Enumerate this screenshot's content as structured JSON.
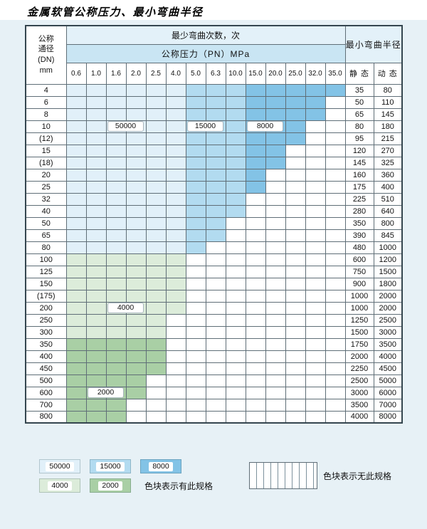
{
  "page_title": "金属软管公称压力、最小弯曲半径",
  "chart_data": {
    "type": "heatmap",
    "title": "金属软管公称压力、最小弯曲半径",
    "header": {
      "dn_lines": [
        "公称",
        "通径",
        "(DN)",
        "mm"
      ],
      "bend_cycles": "最少弯曲次数，次",
      "pressure": "公称压力（PN）MPa",
      "min_bend_radius": "最小弯曲半径",
      "static_label": "静 态",
      "dynamic_label": "动 态"
    },
    "columns_pn_mpa": [
      "0.6",
      "1.0",
      "1.6",
      "2.0",
      "2.5",
      "4.0",
      "5.0",
      "6.3",
      "10.0",
      "15.0",
      "20.0",
      "25.0",
      "32.0",
      "35.0"
    ],
    "blue_bands": [
      {
        "cycles": "50000",
        "col_from": 0,
        "col_to": 5
      },
      {
        "cycles": "15000",
        "col_from": 6,
        "col_to": 8
      },
      {
        "cycles": "8000",
        "col_from": 9,
        "col_to": 13
      }
    ],
    "rows": [
      {
        "dn": "4",
        "zone": "blue",
        "max_col": 13,
        "static": "35",
        "dynamic": "80"
      },
      {
        "dn": "6",
        "zone": "blue",
        "max_col": 12,
        "static": "50",
        "dynamic": "110"
      },
      {
        "dn": "8",
        "zone": "blue",
        "max_col": 12,
        "static": "65",
        "dynamic": "145"
      },
      {
        "dn": "10",
        "zone": "blue",
        "max_col": 11,
        "static": "80",
        "dynamic": "180"
      },
      {
        "dn": "(12)",
        "zone": "blue",
        "max_col": 11,
        "static": "95",
        "dynamic": "215"
      },
      {
        "dn": "15",
        "zone": "blue",
        "max_col": 10,
        "static": "120",
        "dynamic": "270"
      },
      {
        "dn": "(18)",
        "zone": "blue",
        "max_col": 10,
        "static": "145",
        "dynamic": "325"
      },
      {
        "dn": "20",
        "zone": "blue",
        "max_col": 9,
        "static": "160",
        "dynamic": "360"
      },
      {
        "dn": "25",
        "zone": "blue",
        "max_col": 9,
        "static": "175",
        "dynamic": "400"
      },
      {
        "dn": "32",
        "zone": "blue",
        "max_col": 8,
        "static": "225",
        "dynamic": "510"
      },
      {
        "dn": "40",
        "zone": "blue",
        "max_col": 8,
        "static": "280",
        "dynamic": "640"
      },
      {
        "dn": "50",
        "zone": "blue",
        "max_col": 7,
        "static": "350",
        "dynamic": "800"
      },
      {
        "dn": "65",
        "zone": "blue",
        "max_col": 7,
        "static": "390",
        "dynamic": "845"
      },
      {
        "dn": "80",
        "zone": "blue",
        "max_col": 6,
        "static": "480",
        "dynamic": "1000"
      },
      {
        "dn": "100",
        "zone": "4000",
        "max_col": 5,
        "static": "600",
        "dynamic": "1200"
      },
      {
        "dn": "125",
        "zone": "4000",
        "max_col": 5,
        "static": "750",
        "dynamic": "1500"
      },
      {
        "dn": "150",
        "zone": "4000",
        "max_col": 5,
        "static": "900",
        "dynamic": "1800"
      },
      {
        "dn": "(175)",
        "zone": "4000",
        "max_col": 5,
        "static": "1000",
        "dynamic": "2000"
      },
      {
        "dn": "200",
        "zone": "4000",
        "max_col": 5,
        "static": "1000",
        "dynamic": "2000"
      },
      {
        "dn": "250",
        "zone": "4000",
        "max_col": 4,
        "static": "1250",
        "dynamic": "2500"
      },
      {
        "dn": "300",
        "zone": "4000",
        "max_col": 4,
        "static": "1500",
        "dynamic": "3000"
      },
      {
        "dn": "350",
        "zone": "2000",
        "max_col": 4,
        "static": "1750",
        "dynamic": "3500"
      },
      {
        "dn": "400",
        "zone": "2000",
        "max_col": 4,
        "static": "2000",
        "dynamic": "4000"
      },
      {
        "dn": "450",
        "zone": "2000",
        "max_col": 4,
        "static": "2250",
        "dynamic": "4500"
      },
      {
        "dn": "500",
        "zone": "2000",
        "max_col": 3,
        "static": "2500",
        "dynamic": "5000"
      },
      {
        "dn": "600",
        "zone": "2000",
        "max_col": 3,
        "static": "3000",
        "dynamic": "6000"
      },
      {
        "dn": "700",
        "zone": "2000",
        "max_col": 2,
        "static": "3500",
        "dynamic": "7000"
      },
      {
        "dn": "800",
        "zone": "2000",
        "max_col": 2,
        "static": "4000",
        "dynamic": "8000"
      }
    ],
    "notes": {
      "colored_means": "色块表示有此规格",
      "blank_means": "色块表示无此规格"
    }
  },
  "overlay_labels": [
    {
      "text": "50000",
      "row": 3,
      "col_from": 2,
      "col_to": 3
    },
    {
      "text": "15000",
      "row": 3,
      "col_from": 6,
      "col_to": 7
    },
    {
      "text": "8000",
      "row": 3,
      "col_from": 9,
      "col_to": 10
    },
    {
      "text": "4000",
      "row": 18,
      "col_from": 2,
      "col_to": 3
    },
    {
      "text": "2000",
      "row": 25,
      "col_from": 1,
      "col_to": 2
    }
  ],
  "legend": {
    "items": [
      {
        "label": "50000",
        "color_key": "c50000"
      },
      {
        "label": "15000",
        "color_key": "c15000"
      },
      {
        "label": "8000",
        "color_key": "c8000"
      },
      {
        "label": "4000",
        "color_key": "c4000"
      },
      {
        "label": "2000",
        "color_key": "c2000"
      }
    ],
    "has_spec_text": "色块表示有此规格",
    "no_spec_text": "色块表示无此规格"
  },
  "colors": {
    "c50000": "#e1f0f9",
    "c15000": "#b2dbf0",
    "c8000": "#83c3e6",
    "c4000": "#dcecda",
    "c2000": "#a9cfa5",
    "header_light": "#e3f1f9",
    "header_mid": "#c9e5f3",
    "page_bg": "#e7f1f6",
    "grid_line": "#5f6e77"
  }
}
